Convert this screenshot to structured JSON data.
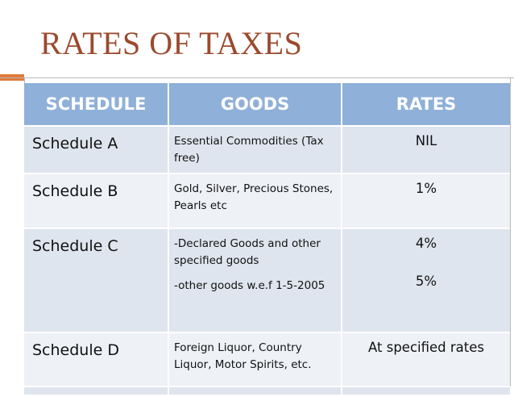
{
  "header": {
    "title": "RATES OF TAXES"
  },
  "table": {
    "columns": [
      "SCHEDULE",
      "GOODS",
      "RATES"
    ],
    "rows": [
      [
        "Schedule A",
        [
          "Essential Commodities (Tax free)"
        ],
        [
          "NIL"
        ]
      ],
      [
        "Schedule B",
        [
          "Gold, Silver, Precious Stones, Pearls etc"
        ],
        [
          "1%"
        ]
      ],
      [
        "Schedule C",
        [
          "-Declared Goods and other specified goods",
          "-other goods w.e.f 1-5-2005"
        ],
        [
          "4%",
          "5%"
        ]
      ],
      [
        "Schedule D",
        [
          "Foreign Liquor, Country Liquor, Motor Spirits, etc."
        ],
        [
          "At specified rates"
        ]
      ]
    ]
  }
}
